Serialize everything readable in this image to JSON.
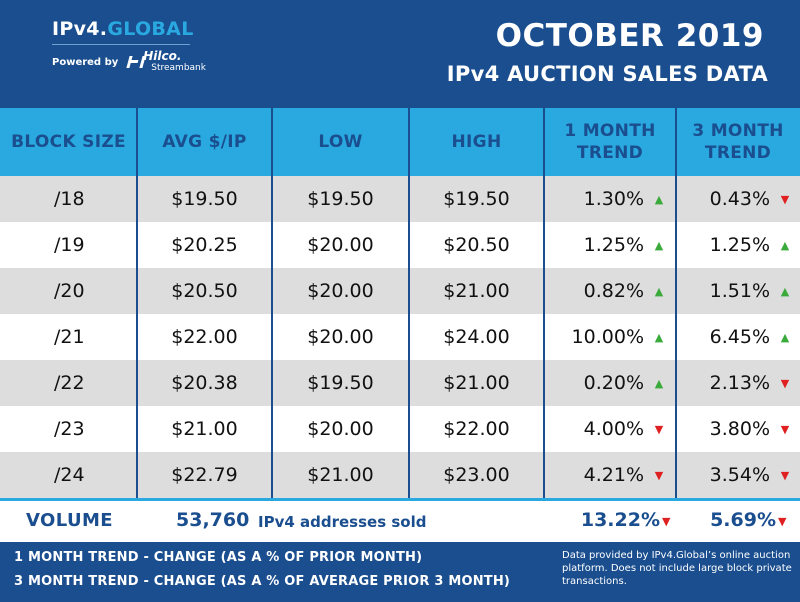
{
  "header": {
    "logo_prefix": "IPv4.",
    "logo_accent": "GLOBAL",
    "powered_by": "Powered by",
    "hilco_name": "Hilco.",
    "hilco_sub": "Streambank",
    "title_line1": "OCTOBER 2019",
    "title_line2": "IPv4 AUCTION SALES DATA"
  },
  "table": {
    "columns": [
      "BLOCK SIZE",
      "AVG $/IP",
      "LOW",
      "HIGH",
      "1 MONTH TREND",
      "3 MONTH TREND"
    ],
    "rows": [
      {
        "block": "/18",
        "avg": "$19.50",
        "low": "$19.50",
        "high": "$19.50",
        "t1": "1.30%",
        "t1_dir": "up",
        "t3": "0.43%",
        "t3_dir": "down"
      },
      {
        "block": "/19",
        "avg": "$20.25",
        "low": "$20.00",
        "high": "$20.50",
        "t1": "1.25%",
        "t1_dir": "up",
        "t3": "1.25%",
        "t3_dir": "up"
      },
      {
        "block": "/20",
        "avg": "$20.50",
        "low": "$20.00",
        "high": "$21.00",
        "t1": "0.82%",
        "t1_dir": "up",
        "t3": "1.51%",
        "t3_dir": "up"
      },
      {
        "block": "/21",
        "avg": "$22.00",
        "low": "$20.00",
        "high": "$24.00",
        "t1": "10.00%",
        "t1_dir": "up",
        "t3": "6.45%",
        "t3_dir": "up"
      },
      {
        "block": "/22",
        "avg": "$20.38",
        "low": "$19.50",
        "high": "$21.00",
        "t1": "0.20%",
        "t1_dir": "up",
        "t3": "2.13%",
        "t3_dir": "down"
      },
      {
        "block": "/23",
        "avg": "$21.00",
        "low": "$20.00",
        "high": "$22.00",
        "t1": "4.00%",
        "t1_dir": "down",
        "t3": "3.80%",
        "t3_dir": "down"
      },
      {
        "block": "/24",
        "avg": "$22.79",
        "low": "$21.00",
        "high": "$23.00",
        "t1": "4.21%",
        "t1_dir": "down",
        "t3": "3.54%",
        "t3_dir": "down"
      }
    ]
  },
  "volume": {
    "label": "VOLUME",
    "count": "53,760",
    "text": "IPv4 addresses sold",
    "t1": "13.22%",
    "t1_dir": "down",
    "t3": "5.69%",
    "t3_dir": "down"
  },
  "footer": {
    "legend1": "1 MONTH TREND - CHANGE (AS A % OF PRIOR MONTH)",
    "legend2": "3 MONTH TREND - CHANGE (AS A % OF AVERAGE PRIOR 3 MONTH)",
    "note": "Data provided by IPv4.Global’s online auction platform. Does not include large block private transactions."
  },
  "colors": {
    "navy": "#1a4e8f",
    "cyan": "#29a9e0",
    "row_gray": "#dddddd",
    "up": "#3aaa3a",
    "down": "#e02020"
  },
  "icons": {
    "up": "triangle-up-icon",
    "down": "triangle-down-icon"
  }
}
